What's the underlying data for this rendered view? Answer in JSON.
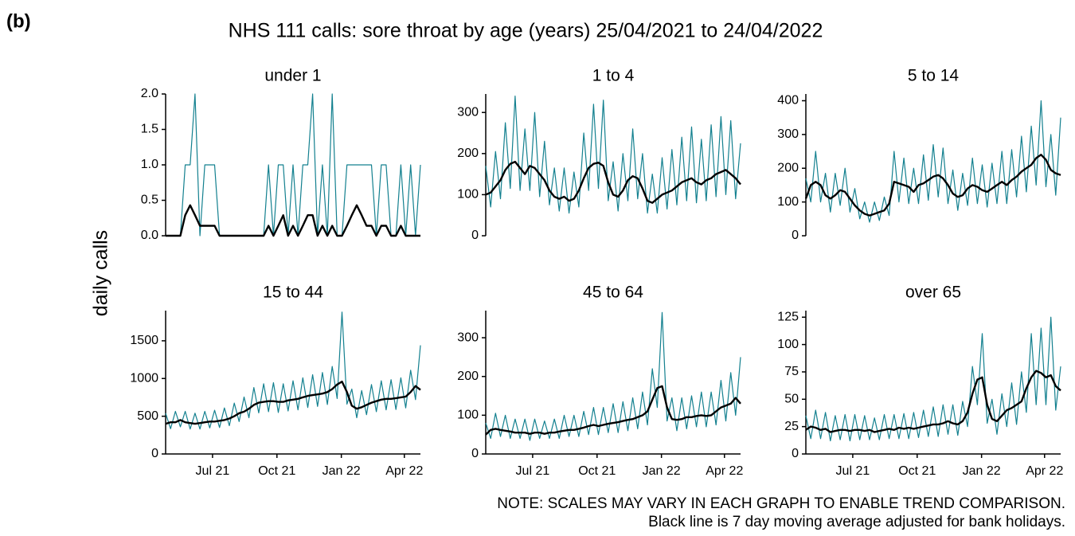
{
  "label": "(b)",
  "title": "NHS 111 calls: sore throat by age (years) 25/04/2021 to 24/04/2022",
  "ylabel": "daily calls",
  "notes": [
    "NOTE: SCALES MAY VARY IN EACH GRAPH TO ENABLE TREND COMPARISON.",
    "Black line is 7 day moving average adjusted for bank holidays."
  ],
  "chart_data": [
    {
      "type": "line",
      "title": "under 1",
      "x": [
        0,
        7,
        14,
        21,
        28,
        35,
        42,
        49,
        56,
        63,
        70,
        77,
        84,
        91,
        98,
        105,
        112,
        119,
        126,
        133,
        140,
        147,
        154,
        161,
        168,
        175,
        182,
        189,
        196,
        203,
        210,
        217,
        224,
        231,
        238,
        245,
        252,
        259,
        266,
        273,
        280,
        287,
        294,
        301,
        308,
        315,
        322,
        329,
        336,
        343,
        350,
        357,
        364
      ],
      "xlim": [
        0,
        364
      ],
      "ylim": [
        0,
        2
      ],
      "yticks": [
        {
          "value": 0,
          "label": "0.0"
        },
        0.5,
        {
          "value": 1,
          "label": "1.0"
        },
        1.5,
        {
          "value": 2,
          "label": "2.0"
        }
      ],
      "series": [
        {
          "color": "#13808f",
          "values": [
            0,
            0,
            0,
            0,
            1,
            1,
            2,
            0,
            1,
            1,
            1,
            0,
            0,
            0,
            0,
            0,
            0,
            0,
            0,
            0,
            0,
            1,
            0,
            1,
            1,
            0,
            1,
            0,
            1,
            1,
            2,
            0,
            1,
            0,
            2,
            0,
            0,
            1,
            1,
            1,
            1,
            1,
            1,
            0,
            1,
            1,
            0,
            0,
            1,
            0,
            1,
            0,
            1
          ]
        },
        {
          "color": "#000000",
          "values": [
            0,
            0,
            0,
            0,
            0.29,
            0.43,
            0.29,
            0.14,
            0.14,
            0.14,
            0.14,
            0,
            0,
            0,
            0,
            0,
            0,
            0,
            0,
            0,
            0,
            0.14,
            0,
            0.14,
            0.29,
            0,
            0.14,
            0,
            0.14,
            0.29,
            0.29,
            0,
            0.14,
            0,
            0.14,
            0,
            0,
            0.14,
            0.29,
            0.43,
            0.29,
            0.14,
            0.14,
            0,
            0.14,
            0.14,
            0,
            0,
            0.14,
            0,
            0,
            0,
            0
          ]
        }
      ]
    },
    {
      "type": "line",
      "title": "1 to 4",
      "x": [
        0,
        7,
        14,
        21,
        28,
        35,
        42,
        49,
        56,
        63,
        70,
        77,
        84,
        91,
        98,
        105,
        112,
        119,
        126,
        133,
        140,
        147,
        154,
        161,
        168,
        175,
        182,
        189,
        196,
        203,
        210,
        217,
        224,
        231,
        238,
        245,
        252,
        259,
        266,
        273,
        280,
        287,
        294,
        301,
        308,
        315,
        322,
        329,
        336,
        343,
        350,
        357,
        364
      ],
      "xlim": [
        0,
        364
      ],
      "ylim": [
        0,
        345
      ],
      "yticks": [
        0,
        100,
        200,
        300
      ],
      "series": [
        {
          "color": "#13808f",
          "values": [
            170,
            70,
            205,
            90,
            275,
            115,
            340,
            110,
            260,
            110,
            300,
            95,
            230,
            75,
            165,
            60,
            165,
            55,
            155,
            70,
            250,
            110,
            320,
            115,
            330,
            85,
            180,
            60,
            200,
            85,
            260,
            90,
            200,
            55,
            150,
            55,
            190,
            65,
            210,
            75,
            240,
            85,
            265,
            80,
            235,
            85,
            270,
            95,
            290,
            100,
            280,
            90,
            225
          ]
        },
        {
          "color": "#000000",
          "values": [
            100,
            105,
            120,
            135,
            160,
            175,
            180,
            165,
            150,
            170,
            165,
            150,
            135,
            110,
            95,
            90,
            95,
            85,
            90,
            110,
            140,
            165,
            175,
            178,
            170,
            130,
            100,
            95,
            110,
            135,
            145,
            140,
            115,
            85,
            80,
            90,
            100,
            105,
            110,
            120,
            130,
            135,
            140,
            130,
            125,
            135,
            140,
            150,
            155,
            160,
            150,
            140,
            125
          ]
        }
      ]
    },
    {
      "type": "line",
      "title": "5 to 14",
      "x": [
        0,
        7,
        14,
        21,
        28,
        35,
        42,
        49,
        56,
        63,
        70,
        77,
        84,
        91,
        98,
        105,
        112,
        119,
        126,
        133,
        140,
        147,
        154,
        161,
        168,
        175,
        182,
        189,
        196,
        203,
        210,
        217,
        224,
        231,
        238,
        245,
        252,
        259,
        266,
        273,
        280,
        287,
        294,
        301,
        308,
        315,
        322,
        329,
        336,
        343,
        350,
        357,
        364
      ],
      "xlim": [
        0,
        364
      ],
      "ylim": [
        0,
        420
      ],
      "yticks": [
        0,
        100,
        200,
        300,
        400
      ],
      "series": [
        {
          "color": "#13808f",
          "values": [
            170,
            100,
            250,
            100,
            185,
            70,
            185,
            90,
            200,
            70,
            140,
            50,
            100,
            40,
            100,
            45,
            115,
            60,
            250,
            100,
            230,
            95,
            200,
            95,
            240,
            105,
            270,
            115,
            260,
            95,
            195,
            75,
            185,
            90,
            230,
            95,
            210,
            85,
            215,
            95,
            250,
            95,
            255,
            115,
            295,
            130,
            325,
            150,
            400,
            145,
            300,
            120,
            350
          ]
        },
        {
          "color": "#000000",
          "values": [
            110,
            150,
            160,
            150,
            120,
            110,
            120,
            135,
            130,
            110,
            90,
            75,
            65,
            60,
            65,
            70,
            75,
            95,
            160,
            155,
            150,
            145,
            130,
            150,
            155,
            165,
            175,
            180,
            170,
            150,
            125,
            115,
            120,
            140,
            150,
            145,
            135,
            130,
            140,
            150,
            160,
            150,
            165,
            175,
            190,
            200,
            210,
            230,
            240,
            225,
            195,
            185,
            180
          ]
        }
      ]
    },
    {
      "type": "line",
      "title": "15 to 44",
      "x": [
        0,
        7,
        14,
        21,
        28,
        35,
        42,
        49,
        56,
        63,
        70,
        77,
        84,
        91,
        98,
        105,
        112,
        119,
        126,
        133,
        140,
        147,
        154,
        161,
        168,
        175,
        182,
        189,
        196,
        203,
        210,
        217,
        224,
        231,
        238,
        245,
        252,
        259,
        266,
        273,
        280,
        287,
        294,
        301,
        308,
        315,
        322,
        329,
        336,
        343,
        350,
        357,
        364
      ],
      "xlim": [
        0,
        364
      ],
      "ylim": [
        0,
        1900
      ],
      "yticks": [
        0,
        500,
        1000,
        1500
      ],
      "xticks": [
        {
          "value": 67,
          "label": "Jul 21"
        },
        {
          "value": 159,
          "label": "Oct 21"
        },
        {
          "value": 251,
          "label": "Jan 22"
        },
        {
          "value": 341,
          "label": "Apr 22"
        }
      ],
      "series": [
        {
          "color": "#13808f",
          "values": [
            540,
            335,
            565,
            360,
            565,
            330,
            540,
            330,
            565,
            345,
            580,
            350,
            610,
            375,
            675,
            430,
            755,
            480,
            880,
            545,
            930,
            560,
            945,
            550,
            930,
            570,
            970,
            585,
            1010,
            615,
            1050,
            630,
            1080,
            655,
            1160,
            735,
            1880,
            660,
            860,
            480,
            840,
            520,
            920,
            560,
            970,
            585,
            985,
            590,
            1010,
            610,
            1110,
            720,
            1440
          ]
        },
        {
          "color": "#000000",
          "values": [
            400,
            420,
            420,
            450,
            420,
            410,
            400,
            410,
            420,
            430,
            430,
            440,
            450,
            470,
            500,
            540,
            560,
            600,
            650,
            680,
            690,
            700,
            700,
            690,
            690,
            710,
            720,
            730,
            750,
            770,
            780,
            790,
            800,
            820,
            860,
            920,
            960,
            820,
            640,
            600,
            620,
            650,
            680,
            700,
            720,
            730,
            730,
            740,
            750,
            760,
            820,
            900,
            850
          ]
        }
      ]
    },
    {
      "type": "line",
      "title": "45 to 64",
      "x": [
        0,
        7,
        14,
        21,
        28,
        35,
        42,
        49,
        56,
        63,
        70,
        77,
        84,
        91,
        98,
        105,
        112,
        119,
        126,
        133,
        140,
        147,
        154,
        161,
        168,
        175,
        182,
        189,
        196,
        203,
        210,
        217,
        224,
        231,
        238,
        245,
        252,
        259,
        266,
        273,
        280,
        287,
        294,
        301,
        308,
        315,
        322,
        329,
        336,
        343,
        350,
        357,
        364
      ],
      "xlim": [
        0,
        364
      ],
      "ylim": [
        0,
        370
      ],
      "yticks": [
        0,
        100,
        200,
        300
      ],
      "xticks": [
        {
          "value": 67,
          "label": "Jul 21"
        },
        {
          "value": 159,
          "label": "Oct 21"
        },
        {
          "value": 251,
          "label": "Jan 22"
        },
        {
          "value": 341,
          "label": "Apr 22"
        }
      ],
      "series": [
        {
          "color": "#13808f",
          "values": [
            80,
            40,
            105,
            45,
            100,
            40,
            90,
            40,
            90,
            35,
            90,
            40,
            85,
            40,
            90,
            40,
            100,
            45,
            100,
            45,
            110,
            50,
            120,
            50,
            120,
            55,
            130,
            55,
            135,
            60,
            145,
            65,
            160,
            75,
            220,
            120,
            365,
            85,
            145,
            60,
            145,
            65,
            150,
            70,
            160,
            70,
            160,
            75,
            190,
            85,
            210,
            100,
            250
          ]
        },
        {
          "color": "#000000",
          "values": [
            50,
            62,
            65,
            62,
            60,
            58,
            55,
            55,
            55,
            52,
            55,
            55,
            52,
            55,
            55,
            58,
            60,
            62,
            62,
            65,
            68,
            72,
            75,
            72,
            75,
            78,
            80,
            82,
            85,
            88,
            90,
            95,
            100,
            110,
            140,
            170,
            175,
            120,
            90,
            88,
            90,
            95,
            95,
            98,
            100,
            98,
            100,
            110,
            120,
            125,
            130,
            145,
            130
          ]
        }
      ]
    },
    {
      "type": "line",
      "title": "over 65",
      "x": [
        0,
        7,
        14,
        21,
        28,
        35,
        42,
        49,
        56,
        63,
        70,
        77,
        84,
        91,
        98,
        105,
        112,
        119,
        126,
        133,
        140,
        147,
        154,
        161,
        168,
        175,
        182,
        189,
        196,
        203,
        210,
        217,
        224,
        231,
        238,
        245,
        252,
        259,
        266,
        273,
        280,
        287,
        294,
        301,
        308,
        315,
        322,
        329,
        336,
        343,
        350,
        357,
        364
      ],
      "xlim": [
        0,
        364
      ],
      "ylim": [
        0,
        131
      ],
      "yticks": [
        0,
        25,
        50,
        75,
        100,
        125
      ],
      "xticks": [
        {
          "value": 67,
          "label": "Jul 21"
        },
        {
          "value": 159,
          "label": "Oct 21"
        },
        {
          "value": 251,
          "label": "Jan 22"
        },
        {
          "value": 341,
          "label": "Apr 22"
        }
      ],
      "series": [
        {
          "color": "#13808f",
          "values": [
            35,
            14,
            40,
            14,
            38,
            12,
            35,
            13,
            36,
            12,
            36,
            13,
            35,
            13,
            33,
            13,
            36,
            14,
            36,
            14,
            37,
            14,
            38,
            15,
            40,
            16,
            43,
            16,
            45,
            18,
            45,
            17,
            48,
            25,
            80,
            45,
            110,
            28,
            50,
            18,
            55,
            25,
            65,
            27,
            75,
            38,
            110,
            45,
            115,
            45,
            125,
            40,
            80
          ]
        },
        {
          "color": "#000000",
          "values": [
            22,
            25,
            24,
            22,
            23,
            20,
            21,
            22,
            22,
            21,
            22,
            22,
            21,
            22,
            20,
            21,
            22,
            23,
            22,
            24,
            23,
            24,
            23,
            24,
            25,
            26,
            27,
            27,
            28,
            30,
            28,
            27,
            30,
            38,
            55,
            68,
            70,
            45,
            32,
            30,
            35,
            40,
            42,
            45,
            48,
            60,
            70,
            76,
            74,
            70,
            72,
            62,
            58
          ]
        }
      ]
    }
  ]
}
